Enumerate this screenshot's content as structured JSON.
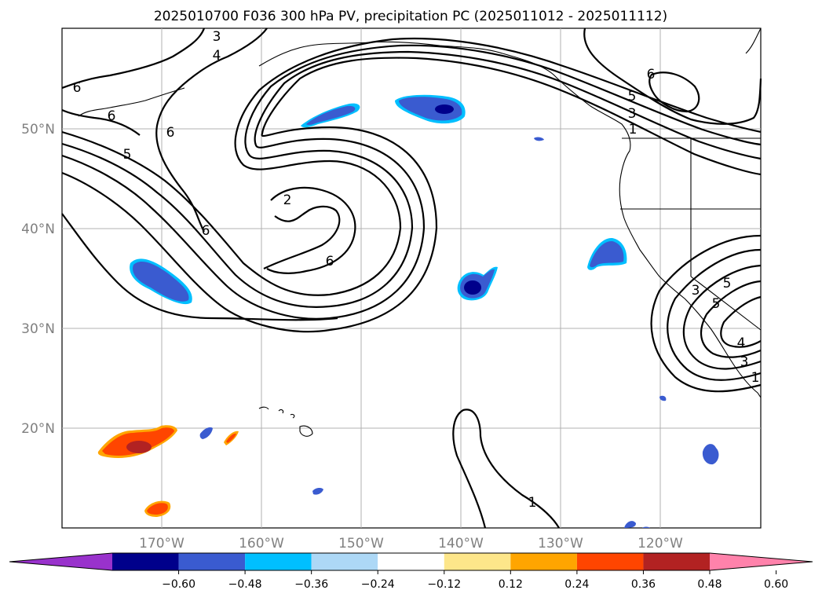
{
  "title": "2025010700 F036 300 hPa PV, precipitation PC (2025011012 - 2025011112)",
  "lat_labels": [
    "50°N",
    "40°N",
    "30°N",
    "20°N"
  ],
  "lon_labels": [
    "170°W",
    "160°W",
    "150°W",
    "140°W",
    "130°W",
    "120°W"
  ],
  "contour_labels": [
    "3",
    "4",
    "6",
    "6",
    "6",
    "5",
    "2",
    "6",
    "6",
    "1",
    "6",
    "5",
    "3",
    "1",
    "3",
    "5",
    "5",
    "4",
    "3",
    "1"
  ],
  "colorbar": {
    "ticks": [
      "−0.60",
      "−0.48",
      "−0.36",
      "−0.24",
      "−0.12",
      "0.12",
      "0.24",
      "0.36",
      "0.48",
      "0.60"
    ],
    "colors": [
      "#9932cc",
      "#00008b",
      "#3a5bd0",
      "#00bfff",
      "#add8f6",
      "#ffffff",
      "#fde68a",
      "#ffa500",
      "#ff4500",
      "#b22222",
      "#ff82ab"
    ]
  }
}
